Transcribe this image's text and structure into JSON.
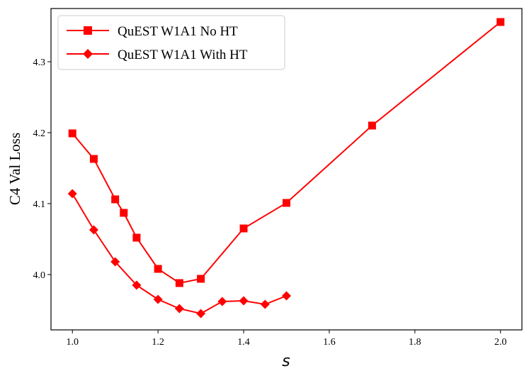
{
  "chart_data": {
    "type": "line",
    "title": "",
    "xlabel": "s",
    "ylabel": "C4 Val Loss",
    "xlim": [
      0.95,
      2.05
    ],
    "ylim": [
      3.922,
      4.375
    ],
    "xticks": [
      1.0,
      1.2,
      1.4,
      1.6,
      1.8,
      2.0
    ],
    "xtick_labels": [
      "1.0",
      "1.2",
      "1.4",
      "1.6",
      "1.8",
      "2.0"
    ],
    "yticks": [
      4.0,
      4.1,
      4.2,
      4.3
    ],
    "ytick_labels": [
      "4.0",
      "4.1",
      "4.2",
      "4.3"
    ],
    "grid": false,
    "legend_position": "top-left",
    "color": "#ff0000",
    "series": [
      {
        "name": "QuEST W1A1 No HT",
        "marker": "square",
        "x": [
          1.0,
          1.05,
          1.1,
          1.12,
          1.15,
          1.2,
          1.25,
          1.3,
          1.4,
          1.5,
          1.7,
          2.0
        ],
        "y": [
          4.199,
          4.163,
          4.106,
          4.087,
          4.052,
          4.008,
          3.988,
          3.994,
          4.065,
          4.101,
          4.21,
          4.356
        ]
      },
      {
        "name": "QuEST W1A1 With HT",
        "marker": "diamond",
        "x": [
          1.0,
          1.05,
          1.1,
          1.15,
          1.2,
          1.25,
          1.3,
          1.35,
          1.4,
          1.45,
          1.5
        ],
        "y": [
          4.114,
          4.063,
          4.018,
          3.985,
          3.965,
          3.952,
          3.945,
          3.962,
          3.963,
          3.958,
          3.97
        ]
      }
    ]
  }
}
